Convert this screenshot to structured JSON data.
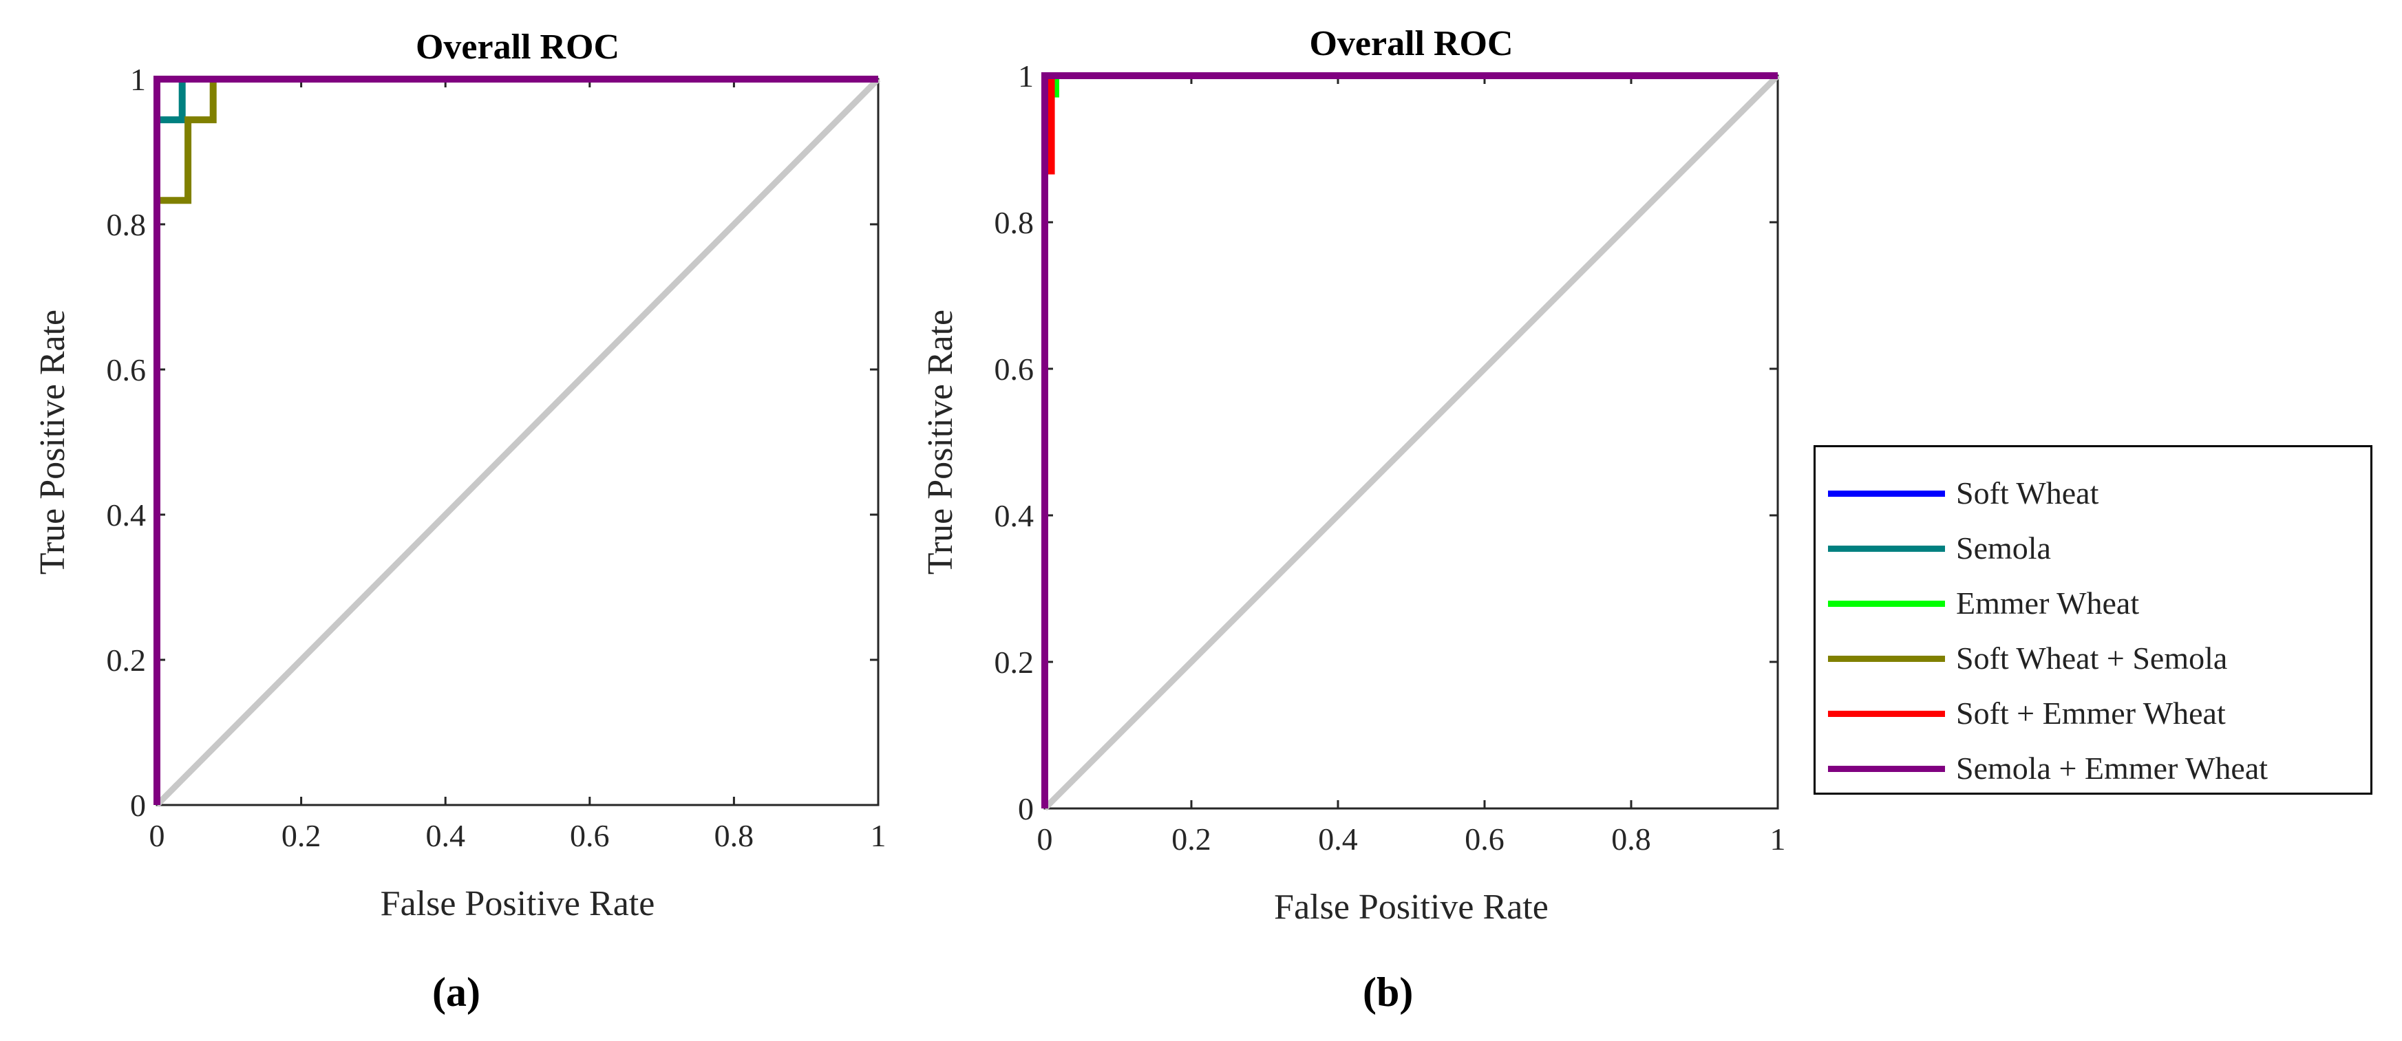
{
  "figure": {
    "subplot_labels": [
      "(a)",
      "(b)"
    ]
  },
  "legend": {
    "items": [
      {
        "label": "Soft Wheat",
        "color": "#0000ff"
      },
      {
        "label": "Semola",
        "color": "#008080"
      },
      {
        "label": "Emmer Wheat",
        "color": "#00ff00"
      },
      {
        "label": "Soft Wheat + Semola",
        "color": "#808000"
      },
      {
        "label": "Soft + Emmer Wheat",
        "color": "#ff0000"
      },
      {
        "label": "Semola + Emmer Wheat",
        "color": "#800080"
      }
    ]
  },
  "chart_data": [
    {
      "type": "line",
      "title": "Overall ROC",
      "xlabel": "False Positive Rate",
      "ylabel": "True Positive Rate",
      "xlim": [
        0,
        1
      ],
      "ylim": [
        0,
        1
      ],
      "xticks": [
        "0",
        "0.2",
        "0.4",
        "0.6",
        "0.8",
        "1"
      ],
      "yticks": [
        "0",
        "0.2",
        "0.4",
        "0.6",
        "0.8",
        "1"
      ],
      "grid": false,
      "reference_line": {
        "x": [
          0,
          1
        ],
        "y": [
          0,
          1
        ],
        "color": "#c8c8c8"
      },
      "series": [
        {
          "name": "Soft Wheat",
          "color": "#0000ff",
          "x": [
            0,
            0,
            1
          ],
          "y": [
            0,
            1,
            1
          ]
        },
        {
          "name": "Semola",
          "color": "#008080",
          "x": [
            0,
            0,
            0.035,
            0.035,
            1
          ],
          "y": [
            0,
            0.944,
            0.944,
            1,
            1
          ]
        },
        {
          "name": "Emmer Wheat",
          "color": "#00ff00",
          "x": [
            0,
            0,
            1
          ],
          "y": [
            0,
            1,
            1
          ]
        },
        {
          "name": "Soft Wheat + Semola",
          "color": "#808000",
          "x": [
            0,
            0,
            0.043,
            0.043,
            0.078,
            0.078,
            1
          ],
          "y": [
            0,
            0.833,
            0.833,
            0.944,
            0.944,
            1,
            1
          ]
        },
        {
          "name": "Soft + Emmer Wheat",
          "color": "#ff0000",
          "x": [
            0,
            0,
            1
          ],
          "y": [
            0,
            1,
            1
          ]
        },
        {
          "name": "Semola + Emmer Wheat",
          "color": "#800080",
          "x": [
            0,
            0,
            1
          ],
          "y": [
            0,
            1,
            1
          ]
        }
      ]
    },
    {
      "type": "line",
      "title": "Overall ROC",
      "xlabel": "False Positive Rate",
      "ylabel": "True Positive Rate",
      "xlim": [
        0,
        1
      ],
      "ylim": [
        0,
        1
      ],
      "xticks": [
        "0",
        "0.2",
        "0.4",
        "0.6",
        "0.8",
        "1"
      ],
      "yticks": [
        "0",
        "0.2",
        "0.4",
        "0.6",
        "0.8",
        "1"
      ],
      "grid": false,
      "reference_line": {
        "x": [
          0,
          1
        ],
        "y": [
          0,
          1
        ],
        "color": "#c8c8c8"
      },
      "series": [
        {
          "name": "Soft Wheat",
          "color": "#0000ff",
          "x": [
            0,
            0,
            1
          ],
          "y": [
            0,
            1,
            1
          ]
        },
        {
          "name": "Semola",
          "color": "#008080",
          "x": [
            0,
            0,
            1
          ],
          "y": [
            0,
            1,
            1
          ]
        },
        {
          "name": "Emmer Wheat",
          "color": "#00ff00",
          "x": [
            0,
            0,
            0.015,
            0.015,
            1
          ],
          "y": [
            0,
            0.975,
            0.975,
            1,
            1
          ]
        },
        {
          "name": "Soft Wheat + Semola",
          "color": "#808000",
          "x": [
            0,
            0,
            1
          ],
          "y": [
            0,
            1,
            1
          ]
        },
        {
          "name": "Soft + Emmer Wheat",
          "color": "#ff0000",
          "x": [
            0,
            0,
            0.009,
            0.009,
            1
          ],
          "y": [
            0,
            0.87,
            0.87,
            1,
            1
          ]
        },
        {
          "name": "Semola + Emmer Wheat",
          "color": "#800080",
          "x": [
            0,
            0,
            1
          ],
          "y": [
            0,
            1,
            1
          ]
        }
      ]
    }
  ]
}
